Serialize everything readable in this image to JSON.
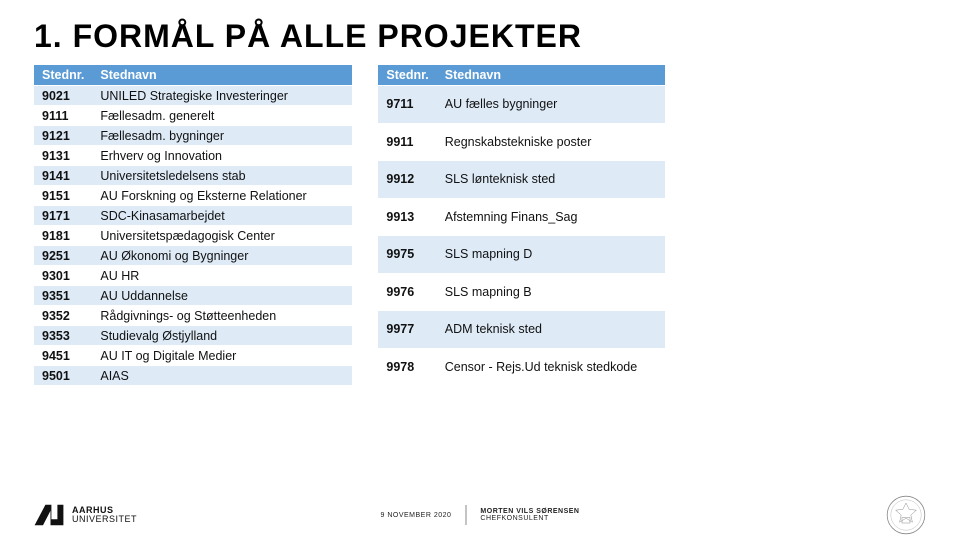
{
  "title": "1. FORMÅL PÅ ALLE PROJEKTER",
  "table_left": {
    "columns": {
      "num": "Stednr.",
      "name": "Stednavn"
    },
    "rows": [
      {
        "num": "9021",
        "name": "UNILED Strategiske Investeringer"
      },
      {
        "num": "9111",
        "name": "Fællesadm. generelt"
      },
      {
        "num": "9121",
        "name": "Fællesadm. bygninger"
      },
      {
        "num": "9131",
        "name": "Erhverv og Innovation"
      },
      {
        "num": "9141",
        "name": "Universitetsledelsens stab"
      },
      {
        "num": "9151",
        "name": "AU Forskning og Eksterne Relationer"
      },
      {
        "num": "9171",
        "name": "SDC-Kinasamarbejdet"
      },
      {
        "num": "9181",
        "name": "Universitetspædagogisk Center"
      },
      {
        "num": "9251",
        "name": "AU Økonomi og Bygninger"
      },
      {
        "num": "9301",
        "name": "AU HR"
      },
      {
        "num": "9351",
        "name": "AU Uddannelse"
      },
      {
        "num": "9352",
        "name": "Rådgivnings- og Støtteenheden"
      },
      {
        "num": "9353",
        "name": "Studievalg Østjylland"
      },
      {
        "num": "9451",
        "name": "AU IT og Digitale Medier"
      },
      {
        "num": "9501",
        "name": "AIAS"
      }
    ]
  },
  "table_right": {
    "columns": {
      "num": "Stednr.",
      "name": "Stednavn"
    },
    "rows": [
      {
        "num": "9711",
        "name": "AU fælles bygninger"
      },
      {
        "num": "9911",
        "name": "Regnskabstekniske poster"
      },
      {
        "num": "9912",
        "name": "SLS lønteknisk sted"
      },
      {
        "num": "9913",
        "name": "Afstemning Finans_Sag"
      },
      {
        "num": "9975",
        "name": "SLS mapning D"
      },
      {
        "num": "9976",
        "name": "SLS mapning B"
      },
      {
        "num": "9977",
        "name": "ADM teknisk sted"
      },
      {
        "num": "9978",
        "name": "Censor - Rejs.Ud teknisk stedkode"
      }
    ]
  },
  "colors": {
    "header_bg": "#5b9bd5",
    "header_fg": "#ffffff",
    "row_odd_bg": "#deebf7",
    "row_even_bg": "#ffffff",
    "text": "#111111"
  },
  "footer": {
    "institution_line1": "AARHUS",
    "institution_line2": "UNIVERSITET",
    "date": "9 NOVEMBER 2020",
    "author_name": "MORTEN VILS SØRENSEN",
    "author_role": "CHEFKONSULENT"
  }
}
